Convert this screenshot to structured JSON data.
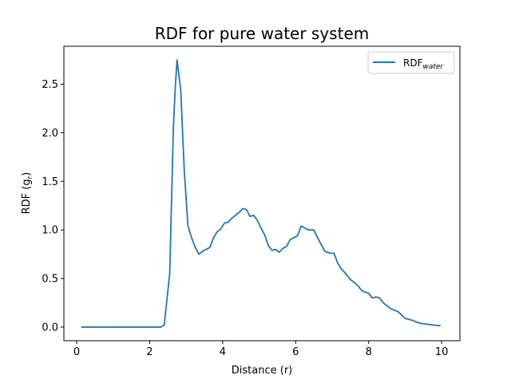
{
  "chart_data": {
    "type": "line",
    "title": "RDF for pure water system",
    "xlabel": "Distance (r)",
    "ylabel": {
      "main": "RDF (g",
      "sub": "r",
      "end": ")"
    },
    "xlim": [
      -0.35,
      10.5
    ],
    "ylim": [
      -0.14,
      2.89
    ],
    "xticks": [
      0,
      2,
      4,
      6,
      8,
      10
    ],
    "yticks": [
      0.0,
      0.5,
      1.0,
      1.5,
      2.0,
      2.5
    ],
    "xtick_labels": [
      "0",
      "2",
      "4",
      "6",
      "8",
      "10"
    ],
    "ytick_labels": [
      "0.0",
      "0.5",
      "1.0",
      "1.5",
      "2.0",
      "2.5"
    ],
    "legend": {
      "label_main": "RDF",
      "label_sub": "water",
      "location": "upper right"
    },
    "colors": {
      "line": "#1f77b4",
      "axes": "#000000",
      "legend_border": "#cccccc"
    },
    "series": [
      {
        "name": "RDF_water",
        "x": [
          0.15,
          0.5,
          1.0,
          1.5,
          2.0,
          2.3,
          2.4,
          2.45,
          2.55,
          2.65,
          2.7,
          2.75,
          2.85,
          2.95,
          3.05,
          3.15,
          3.25,
          3.35,
          3.45,
          3.55,
          3.65,
          3.75,
          3.85,
          3.95,
          4.05,
          4.15,
          4.25,
          4.35,
          4.45,
          4.55,
          4.65,
          4.75,
          4.85,
          4.95,
          5.05,
          5.15,
          5.25,
          5.35,
          5.45,
          5.55,
          5.65,
          5.75,
          5.85,
          5.95,
          6.05,
          6.15,
          6.25,
          6.35,
          6.5,
          6.6,
          6.7,
          6.8,
          6.95,
          7.05,
          7.15,
          7.25,
          7.35,
          7.5,
          7.6,
          7.7,
          7.8,
          7.9,
          8.0,
          8.1,
          8.2,
          8.3,
          8.4,
          8.6,
          8.8,
          9.0,
          9.2,
          9.4,
          9.6,
          9.8,
          9.95
        ],
        "values": [
          0.0,
          0.0,
          0.0,
          0.0,
          0.0,
          0.0,
          0.02,
          0.2,
          0.55,
          2.05,
          2.45,
          2.75,
          2.45,
          1.6,
          1.04,
          0.92,
          0.82,
          0.75,
          0.78,
          0.8,
          0.82,
          0.92,
          0.98,
          1.01,
          1.07,
          1.08,
          1.12,
          1.15,
          1.18,
          1.22,
          1.21,
          1.14,
          1.15,
          1.1,
          1.02,
          0.95,
          0.84,
          0.79,
          0.8,
          0.77,
          0.81,
          0.83,
          0.9,
          0.92,
          0.94,
          1.04,
          1.02,
          1.0,
          1.0,
          0.92,
          0.85,
          0.78,
          0.76,
          0.76,
          0.66,
          0.6,
          0.56,
          0.49,
          0.46,
          0.43,
          0.38,
          0.36,
          0.35,
          0.3,
          0.31,
          0.3,
          0.25,
          0.19,
          0.16,
          0.09,
          0.07,
          0.04,
          0.03,
          0.02,
          0.015
        ]
      }
    ]
  }
}
